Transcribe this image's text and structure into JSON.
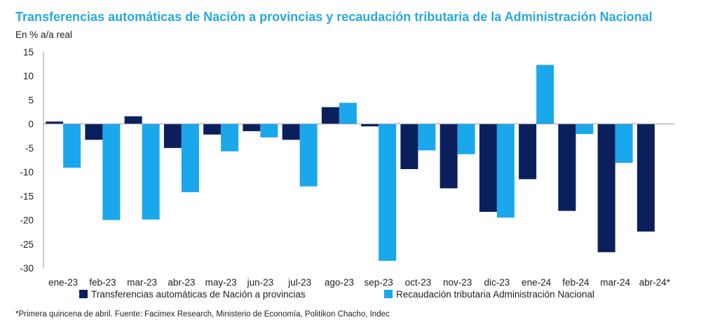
{
  "title": "Transferencias automáticas de Nación a provincias y recaudación tributaria de la Administración Nacional",
  "subtitle": "En % a/a real",
  "source": "*Primera quincena de abril. Fuente: Facimex Research, Ministerio de Economía, Politikon Chacho, Indec",
  "colors": {
    "series1": "#0b1f5c",
    "series2": "#1aa7ec",
    "title": "#29a8e0"
  },
  "chart_data": {
    "type": "bar",
    "categories": [
      "ene-23",
      "feb-23",
      "mar-23",
      "abr-23",
      "may-23",
      "jun-23",
      "jul-23",
      "ago-23",
      "sep-23",
      "oct-23",
      "nov-23",
      "dic-23",
      "ene-24",
      "feb-24",
      "mar-24",
      "abr-24*"
    ],
    "series": [
      {
        "name": "Transferencias automáticas de Nación a provincias",
        "values": [
          0.5,
          -3.3,
          1.6,
          -5.0,
          -2.2,
          -1.5,
          -3.3,
          3.5,
          -0.5,
          -9.4,
          -13.4,
          -18.3,
          -11.5,
          -18.1,
          -26.7,
          -22.4
        ]
      },
      {
        "name": "Recaudación tributaria Administración Nacional",
        "values": [
          -9.1,
          -20.0,
          -19.9,
          -14.2,
          -5.7,
          -2.8,
          -13.0,
          4.4,
          -28.5,
          -5.5,
          -6.3,
          -19.5,
          12.3,
          -2.1,
          -8.1,
          null
        ]
      }
    ],
    "ylim": [
      -30,
      15
    ],
    "yticks": [
      15,
      10,
      5,
      0,
      -5,
      -10,
      -15,
      -20,
      -25,
      -30
    ],
    "legend": "bottom",
    "grid": false
  }
}
